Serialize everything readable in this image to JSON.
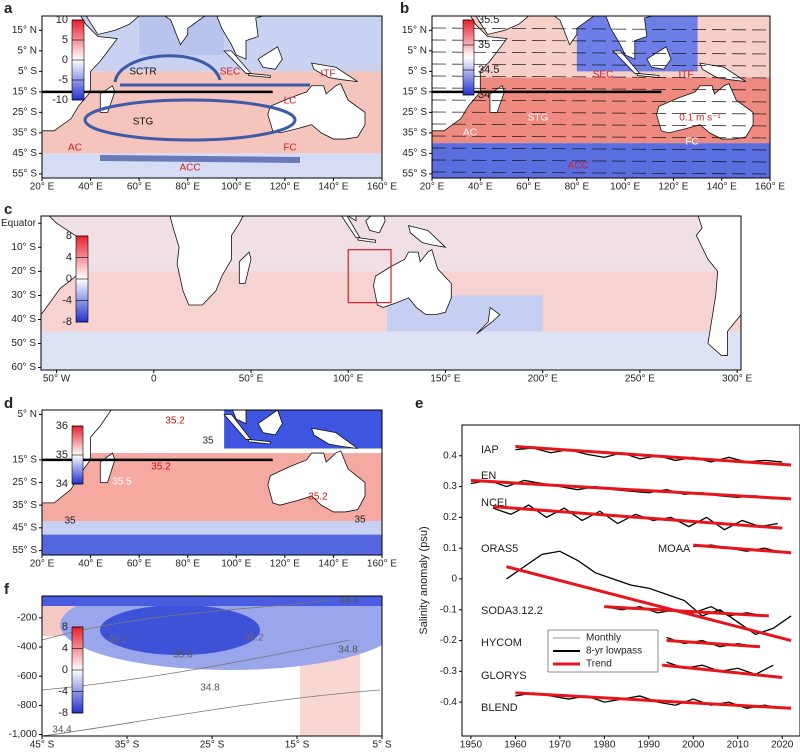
{
  "chart_data": [
    {
      "type": "map",
      "panel": "a",
      "xlim": [
        20,
        160
      ],
      "ylim": [
        -57,
        22
      ],
      "xticks": [
        {
          "value": 20,
          "label": "20° E"
        },
        {
          "value": 40,
          "label": "40° E"
        },
        {
          "value": 60,
          "label": "60° E"
        },
        {
          "value": 80,
          "label": "80° E"
        },
        {
          "value": 100,
          "label": "100° E"
        },
        {
          "value": 120,
          "label": "120° E"
        },
        {
          "value": 140,
          "label": "140° E"
        },
        {
          "value": 160,
          "label": "160° E"
        }
      ],
      "yticks": [
        {
          "value": 15,
          "label": "15° N"
        },
        {
          "value": 5,
          "label": "5° N"
        },
        {
          "value": -5,
          "label": "5° S"
        },
        {
          "value": -15,
          "label": "15° S"
        },
        {
          "value": -25,
          "label": "25° S"
        },
        {
          "value": -35,
          "label": "35° S"
        },
        {
          "value": -45,
          "label": "45° S"
        },
        {
          "value": -55,
          "label": "55° S"
        }
      ],
      "colorbar_ticks": [
        10,
        5,
        0,
        -5,
        -10
      ],
      "annotations": [
        "SCTR",
        "SEC",
        "ITF",
        "STG",
        "LC",
        "AC",
        "FC",
        "ACC"
      ]
    },
    {
      "type": "map",
      "panel": "b",
      "xlim": [
        20,
        160
      ],
      "ylim": [
        -57,
        22
      ],
      "xticks": [
        {
          "value": 20,
          "label": "20° E"
        },
        {
          "value": 40,
          "label": "40° E"
        },
        {
          "value": 60,
          "label": "60° E"
        },
        {
          "value": 80,
          "label": "80° E"
        },
        {
          "value": 100,
          "label": "100° E"
        },
        {
          "value": 120,
          "label": "120° E"
        },
        {
          "value": 140,
          "label": "140° E"
        },
        {
          "value": 160,
          "label": "160° E"
        }
      ],
      "yticks": [
        {
          "value": 15,
          "label": "15° N"
        },
        {
          "value": 5,
          "label": "5° N"
        },
        {
          "value": -5,
          "label": "5° S"
        },
        {
          "value": -15,
          "label": "15° S"
        },
        {
          "value": -25,
          "label": "25° S"
        },
        {
          "value": -35,
          "label": "35° S"
        },
        {
          "value": -45,
          "label": "45° S"
        },
        {
          "value": -55,
          "label": "55° S"
        }
      ],
      "colorbar_ticks": [
        35.5,
        35,
        34.5,
        34
      ],
      "annotations": [
        "SEC",
        "ITF",
        "STG",
        "AC",
        "FC",
        "ACC",
        "0.1 m s⁻¹"
      ]
    },
    {
      "type": "map",
      "panel": "c",
      "xlim": [
        -58,
        302
      ],
      "ylim": [
        -61,
        3
      ],
      "xticks": [
        {
          "value": -50,
          "label": "50° W"
        },
        0,
        {
          "value": 50,
          "label": "50° E"
        },
        {
          "value": 100,
          "label": "100° E"
        },
        {
          "value": 150,
          "label": "150° E"
        },
        {
          "value": 200,
          "label": "200° E"
        },
        {
          "value": 250,
          "label": "250° E"
        },
        {
          "value": 300,
          "label": "300° E"
        }
      ],
      "yticks": [
        {
          "value": 0,
          "label": "Equator"
        },
        {
          "value": -10,
          "label": "10° S"
        },
        {
          "value": -20,
          "label": "20° S"
        },
        {
          "value": -30,
          "label": "30° S"
        },
        {
          "value": -40,
          "label": "40° S"
        },
        {
          "value": -50,
          "label": "50° S"
        },
        {
          "value": -60,
          "label": "60° S"
        }
      ],
      "colorbar_ticks": [
        8,
        4,
        0,
        -4,
        -8
      ],
      "annotations": []
    },
    {
      "type": "map",
      "panel": "d",
      "xlim": [
        20,
        160
      ],
      "ylim": [
        -57,
        7
      ],
      "xticks": [
        {
          "value": 20,
          "label": "20° E"
        },
        {
          "value": 40,
          "label": "40° E"
        },
        {
          "value": 60,
          "label": "60° E"
        },
        {
          "value": 80,
          "label": "80° E"
        },
        {
          "value": 100,
          "label": "100° E"
        },
        {
          "value": 120,
          "label": "120° E"
        },
        {
          "value": 140,
          "label": "140° E"
        },
        {
          "value": 160,
          "label": "160° E"
        }
      ],
      "yticks": [
        {
          "value": 5,
          "label": "5° N"
        },
        {
          "value": -15,
          "label": "15° S"
        },
        {
          "value": -25,
          "label": "25° S"
        },
        {
          "value": -35,
          "label": "35° S"
        },
        {
          "value": -45,
          "label": "45° S"
        },
        {
          "value": -55,
          "label": "55° S"
        }
      ],
      "colorbar_ticks": [
        36,
        35,
        34
      ],
      "annotations": [
        "35.2",
        "35",
        "35.2",
        "35.5",
        "35.2",
        "35",
        "35"
      ]
    },
    {
      "type": "line",
      "panel": "e",
      "xlim": [
        1948,
        2024
      ],
      "ylim": [
        -0.51,
        0.5
      ],
      "xticks": [
        1950,
        1960,
        1970,
        1980,
        1990,
        2000,
        2010,
        2020
      ],
      "yticks": [
        0.4,
        0.3,
        0.2,
        0.1,
        0,
        -0.1,
        -0.2,
        -0.3,
        -0.4
      ],
      "y_label": "Salinity anomaly (psu)",
      "line_styles": [
        {
          "name": "Monthly",
          "color": "#999999"
        },
        {
          "name": "8-yr lowpass",
          "color": "#000000"
        },
        {
          "name": "Trend",
          "color": "#e8141c"
        }
      ],
      "series": [
        {
          "name": "IAP",
          "x": [
            1960,
            1964,
            1968,
            1972,
            1976,
            1980,
            1984,
            1988,
            1992,
            1996,
            2000,
            2004,
            2008,
            2012,
            2016,
            2020
          ],
          "values": [
            0.42,
            0.425,
            0.41,
            0.42,
            0.405,
            0.395,
            0.41,
            0.39,
            0.4,
            0.385,
            0.395,
            0.38,
            0.395,
            0.38,
            0.385,
            0.38
          ],
          "trend_x": [
            1960,
            2022
          ],
          "trend": [
            0.43,
            0.37
          ]
        },
        {
          "name": "EN",
          "x": [
            1950,
            1954,
            1958,
            1962,
            1966,
            1970,
            1974,
            1978,
            1982,
            1986,
            1990,
            1994,
            1998,
            2002,
            2006,
            2010,
            2014,
            2018,
            2022
          ],
          "values": [
            0.31,
            0.32,
            0.3,
            0.32,
            0.31,
            0.3,
            0.29,
            0.3,
            0.29,
            0.285,
            0.28,
            0.29,
            0.275,
            0.28,
            0.27,
            0.265,
            0.27,
            0.26,
            0.26
          ],
          "trend_x": [
            1950,
            2022
          ],
          "trend": [
            0.32,
            0.26
          ]
        },
        {
          "name": "NCEI",
          "x": [
            1955,
            1959,
            1963,
            1967,
            1971,
            1975,
            1979,
            1983,
            1987,
            1991,
            1995,
            1999,
            2003,
            2007,
            2011,
            2015,
            2019
          ],
          "values": [
            0.23,
            0.21,
            0.24,
            0.2,
            0.23,
            0.19,
            0.22,
            0.18,
            0.21,
            0.19,
            0.2,
            0.17,
            0.2,
            0.16,
            0.19,
            0.17,
            0.18
          ],
          "trend_x": [
            1955,
            2020
          ],
          "trend": [
            0.235,
            0.165
          ]
        },
        {
          "name": "ORAS5",
          "x": [
            1958,
            1962,
            1966,
            1970,
            1974,
            1978,
            1982,
            1986,
            1990,
            1994,
            1998,
            2002,
            2006,
            2010,
            2014,
            2018,
            2022
          ],
          "values": [
            0,
            0.04,
            0.08,
            0.09,
            0.06,
            0.02,
            0,
            -0.02,
            -0.03,
            -0.05,
            -0.07,
            -0.12,
            -0.1,
            -0.14,
            -0.18,
            -0.16,
            -0.12
          ],
          "trend_x": [
            1958,
            2022
          ],
          "trend": [
            0.04,
            -0.2
          ]
        },
        {
          "name": "MOAA",
          "x": [
            2000,
            2004,
            2008,
            2012,
            2016,
            2020
          ],
          "values": [
            0.105,
            0.11,
            0.1,
            0.09,
            0.1,
            0.085
          ],
          "trend_x": [
            2000,
            2022
          ],
          "trend": [
            0.11,
            0.085
          ]
        },
        {
          "name": "SODA3.12.2",
          "x": [
            1980,
            1984,
            1988,
            1992,
            1996,
            2000,
            2004,
            2008,
            2012,
            2016
          ],
          "values": [
            -0.09,
            -0.1,
            -0.09,
            -0.11,
            -0.1,
            -0.11,
            -0.09,
            -0.12,
            -0.11,
            -0.12
          ],
          "trend_x": [
            1980,
            2017
          ],
          "trend": [
            -0.09,
            -0.12
          ]
        },
        {
          "name": "HYCOM",
          "x": [
            1994,
            1998,
            2002,
            2006,
            2010,
            2014
          ],
          "values": [
            -0.19,
            -0.21,
            -0.2,
            -0.22,
            -0.21,
            -0.22
          ],
          "trend_x": [
            1994,
            2015
          ],
          "trend": [
            -0.2,
            -0.22
          ]
        },
        {
          "name": "GLORYS",
          "x": [
            1994,
            1998,
            2002,
            2006,
            2010,
            2014,
            2018
          ],
          "values": [
            -0.27,
            -0.29,
            -0.28,
            -0.3,
            -0.29,
            -0.31,
            -0.28
          ],
          "trend_x": [
            1993,
            2020
          ],
          "trend": [
            -0.28,
            -0.32
          ]
        },
        {
          "name": "BLEND",
          "x": [
            1960,
            1964,
            1968,
            1972,
            1976,
            1980,
            1984,
            1988,
            1992,
            1996,
            2000,
            2004,
            2008,
            2012,
            2016,
            2020
          ],
          "values": [
            -0.38,
            -0.37,
            -0.38,
            -0.39,
            -0.38,
            -0.4,
            -0.39,
            -0.38,
            -0.4,
            -0.41,
            -0.39,
            -0.41,
            -0.4,
            -0.42,
            -0.41,
            -0.42
          ],
          "trend_x": [
            1960,
            2022
          ],
          "trend": [
            -0.37,
            -0.42
          ]
        }
      ]
    },
    {
      "type": "section",
      "panel": "f",
      "xlim": [
        -45,
        -5
      ],
      "ylim": [
        -1010,
        -50
      ],
      "xticks": [
        {
          "value": -45,
          "label": "45° S"
        },
        {
          "value": -35,
          "label": "35° S"
        },
        {
          "value": -25,
          "label": "25° S"
        },
        {
          "value": -15,
          "label": "15° S"
        },
        {
          "value": -5,
          "label": "5° S"
        }
      ],
      "yticks": [
        -200,
        -400,
        -600,
        -800,
        {
          "value": -1000,
          "label": "-1,000"
        }
      ],
      "colorbar_ticks": [
        8,
        4,
        0,
        -4,
        -8
      ],
      "annotations": [
        "35.2",
        "35.6",
        "35.2",
        "34.4",
        "34.8",
        "34.8",
        "34.4"
      ]
    }
  ]
}
